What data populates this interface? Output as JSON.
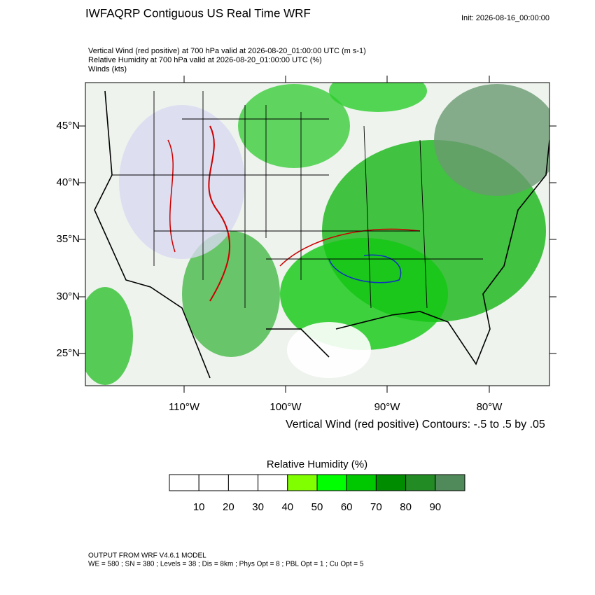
{
  "header": {
    "title": "IWFAQRP Contiguous US Real Time WRF",
    "init": "Init: 2026-08-16_00:00:00",
    "lines": [
      "Vertical Wind (red positive) at 700 hPa valid at 2026-08-20_01:00:00 UTC   (m s-1)",
      "Relative Humidity at 700 hPa valid at 2026-08-20_01:00:00 UTC   (%)",
      "Winds   (kts)"
    ]
  },
  "map": {
    "lat_labels": [
      "45°N",
      "40°N",
      "35°N",
      "30°N",
      "25°N"
    ],
    "lon_labels": [
      "110°W",
      "100°W",
      "90°W",
      "80°W"
    ],
    "contour_info": "Vertical Wind (red positive) Contours: -.5 to .5 by .05"
  },
  "colorbar": {
    "title": "Relative Humidity  (%)",
    "colors": [
      "#ffffff",
      "#ffffff",
      "#ffffff",
      "#ffffff",
      "#80ff00",
      "#00ff00",
      "#00c800",
      "#008c00",
      "#238b23",
      "#518a5a"
    ],
    "ticks": [
      10,
      20,
      30,
      40,
      50,
      60,
      70,
      80,
      90
    ]
  },
  "footer": {
    "lines": [
      "OUTPUT FROM WRF V4.6.1 MODEL",
      "WE = 580 ; SN = 380 ; Levels = 38 ; Dis = 8km ; Phys Opt = 8 ; PBL Opt = 1 ; Cu Opt = 5"
    ]
  }
}
